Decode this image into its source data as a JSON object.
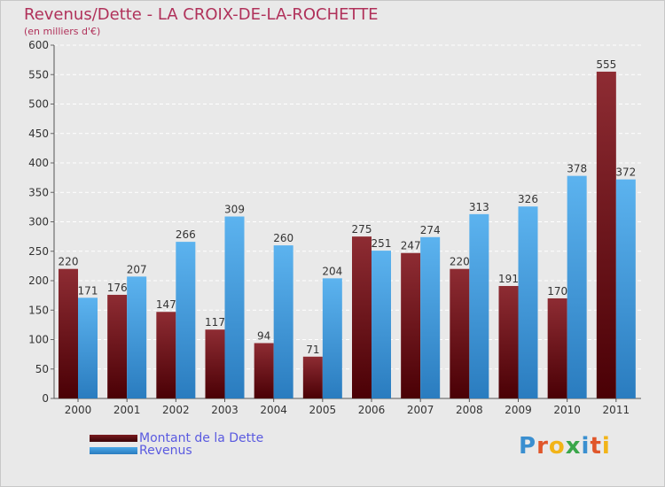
{
  "header": {
    "title": "Revenus/Dette - LA CROIX-DE-LA-ROCHETTE",
    "subtitle": "(en milliers d'€)"
  },
  "chart_data": {
    "type": "bar",
    "categories": [
      "2000",
      "2001",
      "2002",
      "2003",
      "2004",
      "2005",
      "2006",
      "2007",
      "2008",
      "2009",
      "2010",
      "2011"
    ],
    "series": [
      {
        "name": "Montant de la Dette",
        "values": [
          220,
          176,
          147,
          117,
          94,
          71,
          275,
          247,
          220,
          191,
          170,
          555
        ],
        "color": "#7a1a1e"
      },
      {
        "name": "Revenus",
        "values": [
          171,
          207,
          266,
          309,
          260,
          204,
          251,
          274,
          313,
          326,
          378,
          372
        ],
        "color": "#4aa8e8"
      }
    ],
    "ylim": [
      0,
      600
    ],
    "yticks": [
      0,
      50,
      100,
      150,
      200,
      250,
      300,
      350,
      400,
      450,
      500,
      550,
      600
    ],
    "grid": true,
    "legend": "bottom-left"
  },
  "legend": {
    "items": [
      {
        "label": "Montant de la Dette",
        "color": "#7a1a1e"
      },
      {
        "label": "Revenus",
        "color": "#4aa8e8"
      }
    ]
  },
  "logo": {
    "letters": [
      {
        "ch": "P",
        "color": "#3a8fd0"
      },
      {
        "ch": "r",
        "color": "#e0562a"
      },
      {
        "ch": "o",
        "color": "#f2b418"
      },
      {
        "ch": "x",
        "color": "#3aa64a"
      },
      {
        "ch": "i",
        "color": "#3a8fd0"
      },
      {
        "ch": "t",
        "color": "#e0562a"
      },
      {
        "ch": "i",
        "color": "#f2b418"
      }
    ]
  }
}
